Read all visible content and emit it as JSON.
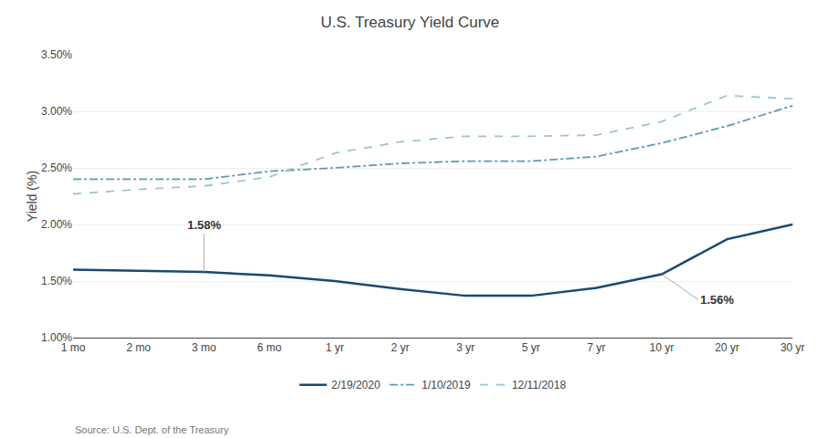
{
  "chart_data": {
    "type": "line",
    "title": "U.S. Treasury Yield Curve",
    "y_label": "Yield (%)",
    "source": "Source: U.S. Dept. of the Treasury",
    "categories": [
      "1 mo",
      "2 mo",
      "3 mo",
      "6 mo",
      "1 yr",
      "2 yr",
      "3 yr",
      "5 yr",
      "7 yr",
      "10 yr",
      "20 yr",
      "30 yr"
    ],
    "series": [
      {
        "name": "2/19/2020",
        "color": "#1a4971",
        "line_style": "solid",
        "values": [
          1.6,
          1.59,
          1.58,
          1.55,
          1.5,
          1.43,
          1.37,
          1.37,
          1.44,
          1.56,
          1.87,
          2.0
        ]
      },
      {
        "name": "1/10/2019",
        "color": "#5b9ab5",
        "line_style": "dashdot",
        "values": [
          2.4,
          2.4,
          2.4,
          2.47,
          2.5,
          2.54,
          2.56,
          2.56,
          2.6,
          2.72,
          2.87,
          3.05
        ]
      },
      {
        "name": "12/11/2018",
        "color": "#9dc3d4",
        "line_style": "dashed",
        "values": [
          2.27,
          2.31,
          2.34,
          2.42,
          2.63,
          2.73,
          2.78,
          2.78,
          2.79,
          2.91,
          3.14,
          3.11
        ]
      }
    ],
    "annotations": [
      {
        "text": "1.58%",
        "x": "3 mo",
        "y": 1.58
      },
      {
        "text": "1.56%",
        "x": "10 yr",
        "y": 1.56
      }
    ],
    "ylim": [
      1.0,
      3.5
    ],
    "yticks": [
      {
        "value": 1.0,
        "label": "1.00%"
      },
      {
        "value": 1.5,
        "label": "1.50%"
      },
      {
        "value": 2.0,
        "label": "2.00%"
      },
      {
        "value": 2.5,
        "label": "2.50%"
      },
      {
        "value": 3.0,
        "label": "3.00%"
      },
      {
        "value": 3.5,
        "label": "3.50%"
      }
    ],
    "grid": true,
    "legend": "bottom"
  }
}
